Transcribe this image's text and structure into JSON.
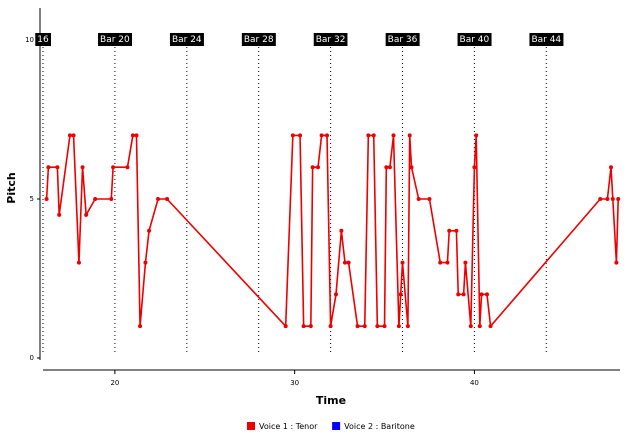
{
  "chart_data": {
    "type": "line",
    "x_label": "Time",
    "y_label": "Pitch",
    "xlim": [
      16,
      48.1
    ],
    "ylim": [
      -0.4,
      11
    ],
    "xticks": [
      20,
      30,
      40
    ],
    "yticks": [
      0,
      5,
      10
    ],
    "markers": [
      {
        "x": 16,
        "label": "16"
      },
      {
        "x": 20,
        "label": "Bar 20"
      },
      {
        "x": 24,
        "label": "Bar 24"
      },
      {
        "x": 28,
        "label": "Bar 28"
      },
      {
        "x": 32,
        "label": "Bar 32"
      },
      {
        "x": 36,
        "label": "Bar 36"
      },
      {
        "x": 40,
        "label": "Bar 40"
      },
      {
        "x": 44,
        "label": "Bar 44"
      }
    ],
    "series": [
      {
        "name": "Voice 1 : Tenor",
        "color": "#ee0000",
        "x": [
          16.2,
          16.3,
          16.8,
          16.9,
          17.5,
          17.7,
          18.0,
          18.2,
          18.4,
          18.9,
          19.8,
          19.9,
          20.7,
          21.0,
          21.2,
          21.4,
          21.7,
          21.9,
          22.4,
          22.9,
          29.5,
          29.9,
          30.3,
          30.5,
          30.9,
          31.0,
          31.3,
          31.5,
          31.8,
          32.0,
          32.3,
          32.6,
          32.8,
          33.0,
          33.5,
          33.9,
          34.1,
          34.4,
          34.6,
          35.0,
          35.1,
          35.3,
          35.5,
          35.8,
          35.9,
          36.0,
          36.3,
          36.4,
          36.5,
          36.9,
          37.5,
          38.1,
          38.5,
          38.6,
          39.0,
          39.1,
          39.4,
          39.5,
          39.8,
          40.0,
          40.1,
          40.3,
          40.4,
          40.7,
          40.9,
          47.0,
          47.4,
          47.6,
          47.7,
          47.9,
          48.0
        ],
        "values": [
          5,
          6,
          6,
          4.5,
          7,
          7,
          3,
          6,
          4.5,
          5,
          5,
          6,
          6,
          7,
          7,
          1,
          3,
          4,
          5,
          5,
          1,
          7,
          7,
          1,
          1,
          6,
          6,
          7,
          7,
          1,
          2,
          4,
          3,
          3,
          1,
          1,
          7,
          7,
          1,
          1,
          6,
          6,
          7,
          1,
          2,
          3,
          1,
          7,
          6,
          5,
          5,
          3,
          3,
          4,
          4,
          2,
          2,
          3,
          1,
          6,
          7,
          1,
          2,
          2,
          1,
          5,
          5,
          6,
          5,
          3,
          5
        ]
      },
      {
        "name": "Voice 2 : Baritone",
        "color": "#0000ff",
        "x": [],
        "values": []
      }
    ]
  }
}
